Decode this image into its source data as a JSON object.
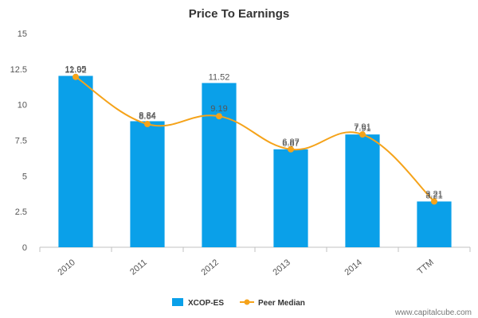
{
  "chart_data": {
    "type": "bar",
    "title": "Price To Earnings",
    "categories": [
      "2010",
      "2011",
      "2012",
      "2013",
      "2014",
      "TTM"
    ],
    "series": [
      {
        "name": "XCOP-ES",
        "kind": "bar",
        "color": "#0aa0e9",
        "values": [
          12.02,
          8.84,
          11.52,
          6.87,
          7.91,
          3.21
        ],
        "labels": [
          "12.02",
          "8.84",
          "11.52",
          "6.87",
          "7.91",
          "3.21"
        ]
      },
      {
        "name": "Peer Median",
        "kind": "line",
        "color": "#f5a31a",
        "values": [
          11.95,
          8.64,
          9.19,
          6.87,
          7.91,
          3.21
        ],
        "labels": [
          "11.95",
          "8.64",
          "9.19",
          "6.87",
          "7.91",
          "3.21"
        ]
      }
    ],
    "ylim": [
      0,
      15
    ],
    "yticks": [
      0,
      2.5,
      5,
      7.5,
      10,
      12.5,
      15
    ],
    "ytick_labels": [
      "0",
      "2.5",
      "5",
      "7.5",
      "10",
      "12.5",
      "15"
    ],
    "grid": false,
    "legend": "bottom-center"
  },
  "watermark": "www.capitalcube.com"
}
